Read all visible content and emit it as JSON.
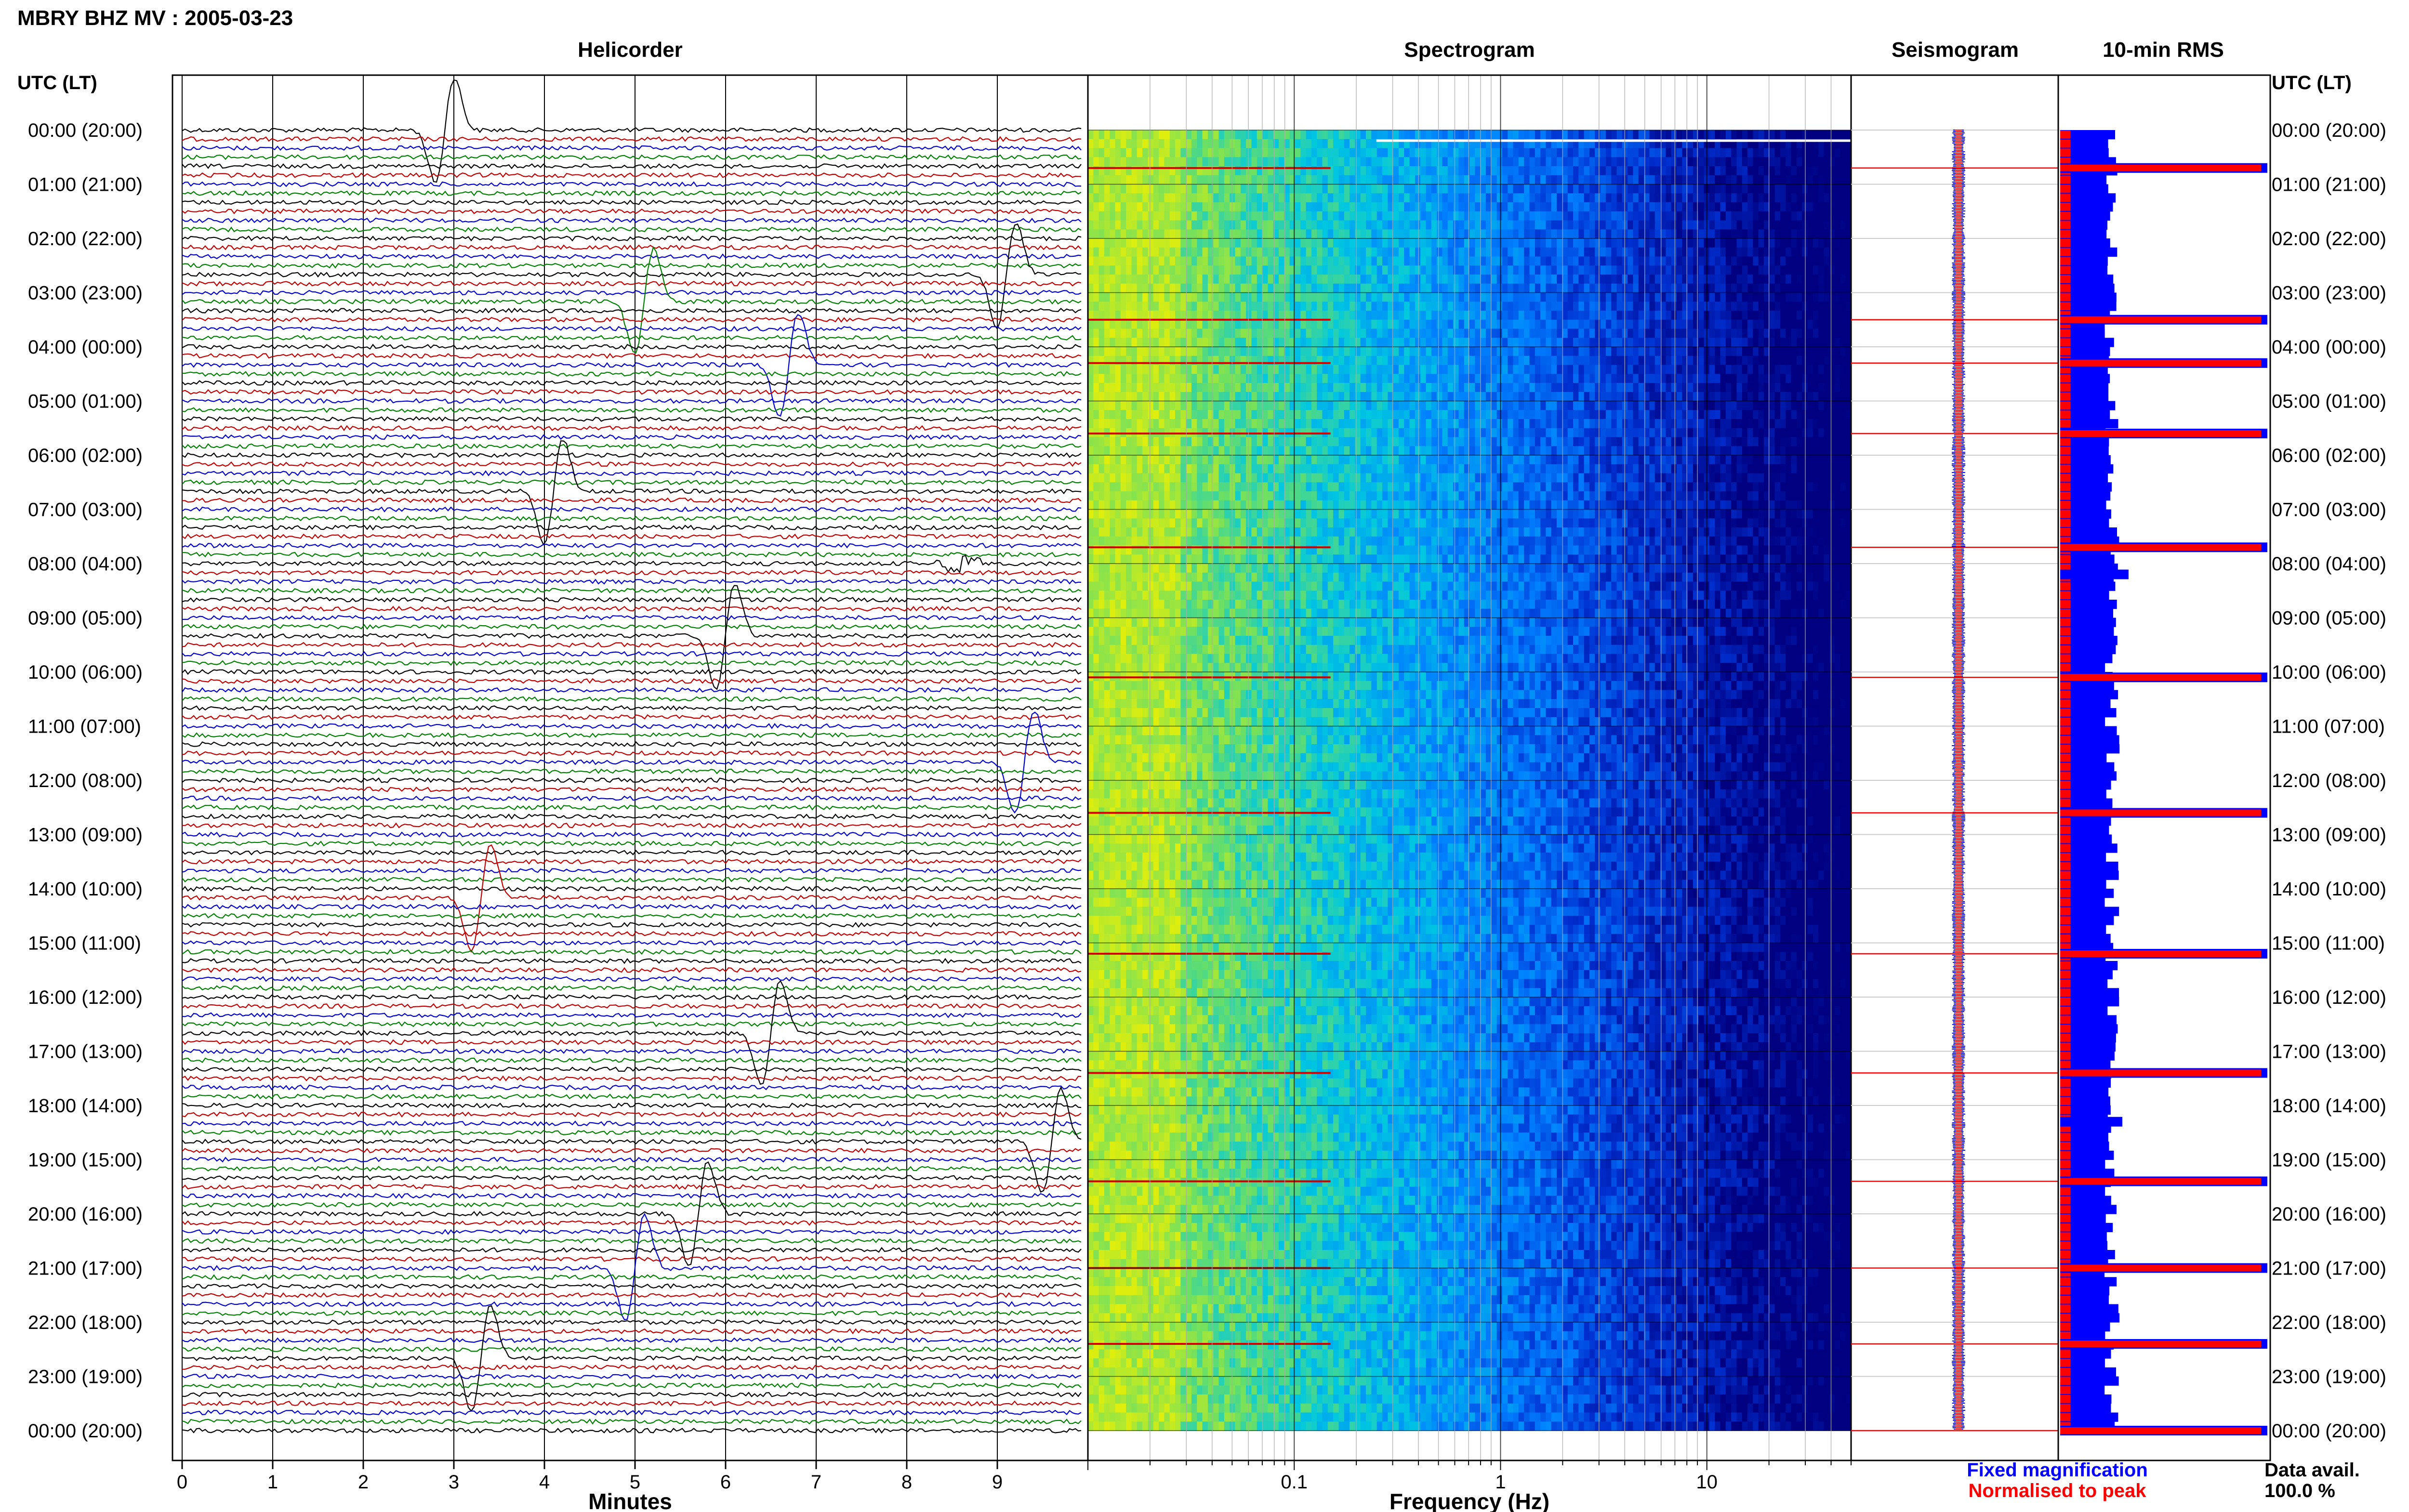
{
  "header": {
    "station": "MBRY BHZ MV : 2005-03-23",
    "left_axis_title": "UTC (LT)",
    "right_axis_title": "UTC (LT)"
  },
  "colors": {
    "trace_cycle": [
      "#000000",
      "#c00000",
      "#0000cc",
      "#008000"
    ],
    "fixed_magnification": "#0000ff",
    "normalised_to_peak": "#ff0000",
    "grid": "#000000"
  },
  "time_labels": [
    "00:00 (20:00)",
    "01:00 (21:00)",
    "02:00 (22:00)",
    "03:00 (23:00)",
    "04:00 (00:00)",
    "05:00 (01:00)",
    "06:00 (02:00)",
    "07:00 (03:00)",
    "08:00 (04:00)",
    "09:00 (05:00)",
    "10:00 (06:00)",
    "11:00 (07:00)",
    "12:00 (08:00)",
    "13:00 (09:00)",
    "14:00 (10:00)",
    "15:00 (11:00)",
    "16:00 (12:00)",
    "17:00 (13:00)",
    "18:00 (14:00)",
    "19:00 (15:00)",
    "20:00 (16:00)",
    "21:00 (17:00)",
    "22:00 (18:00)",
    "23:00 (19:00)",
    "00:00 (20:00)"
  ],
  "panels": {
    "helicorder": {
      "title": "Helicorder",
      "xlabel": "Minutes",
      "ticks": [
        "0",
        "1",
        "2",
        "3",
        "4",
        "5",
        "6",
        "7",
        "8",
        "9"
      ]
    },
    "spectrogram": {
      "title": "Spectrogram",
      "xlabel": "Frequency (Hz)",
      "ticks": [
        "0.1",
        "1",
        "10"
      ]
    },
    "seismogram": {
      "title": "Seismogram"
    },
    "rms": {
      "title": "10-min RMS"
    }
  },
  "legend": {
    "fixed_magnification": "Fixed magnification",
    "normalised_to_peak": "Normalised to peak",
    "data_avail_label": "Data avail.",
    "data_avail_value": "100.0 %"
  },
  "chart_data": [
    {
      "type": "line",
      "name": "helicorder",
      "title": "Helicorder",
      "xlabel": "Minutes",
      "xlim": [
        0,
        10
      ],
      "rows_per_hour": 6,
      "hours": 24,
      "events": [
        {
          "hour": 0.0,
          "minute": 2.9,
          "polarity": 1
        },
        {
          "hour": 2.6,
          "minute": 9.1,
          "polarity": 1
        },
        {
          "hour": 3.1,
          "minute": 5.1,
          "polarity": 1
        },
        {
          "hour": 4.3,
          "minute": 6.7,
          "polarity": 1
        },
        {
          "hour": 6.7,
          "minute": 4.1,
          "polarity": 1
        },
        {
          "hour": 8.0,
          "minute": 8.6,
          "polarity": 0
        },
        {
          "hour": 9.4,
          "minute": 6.0,
          "polarity": 1
        },
        {
          "hour": 11.7,
          "minute": 9.3,
          "polarity": 1
        },
        {
          "hour": 14.1,
          "minute": 3.3,
          "polarity": 1
        },
        {
          "hour": 16.7,
          "minute": 6.5,
          "polarity": 1
        },
        {
          "hour": 18.7,
          "minute": 9.6,
          "polarity": 1
        },
        {
          "hour": 20.0,
          "minute": 5.7,
          "polarity": 1
        },
        {
          "hour": 21.0,
          "minute": 5.0,
          "polarity": 1
        },
        {
          "hour": 22.6,
          "minute": 3.3,
          "polarity": 1
        }
      ]
    },
    {
      "type": "heatmap",
      "name": "spectrogram",
      "title": "Spectrogram",
      "xlabel": "Frequency (Hz)",
      "xscale": "log",
      "xlim": [
        0.01,
        50
      ],
      "colormap": [
        "#f0f000",
        "#70e060",
        "#00c8e0",
        "#0080ff",
        "#0030d0",
        "#000080"
      ],
      "event_hours": [
        0.7,
        3.5,
        4.3,
        5.6,
        7.7,
        10.1,
        12.6,
        15.2,
        17.4,
        19.4,
        21.0,
        22.4
      ]
    },
    {
      "type": "line",
      "name": "seismogram",
      "title": "Seismogram",
      "series": [
        {
          "name": "Fixed magnification",
          "color": "#0000ff"
        },
        {
          "name": "Normalised to peak",
          "color": "#ff0000"
        }
      ],
      "event_hours": [
        0.7,
        3.5,
        4.3,
        5.6,
        7.7,
        10.1,
        12.6,
        15.2,
        17.4,
        19.4,
        21.0,
        22.4,
        24.0
      ]
    },
    {
      "type": "bar",
      "name": "10-min RMS",
      "title": "10-min RMS",
      "bins_per_hour": 6,
      "typical_level": 0.25,
      "peaks": [
        {
          "hour": 0.7,
          "level": 1.0
        },
        {
          "hour": 3.5,
          "level": 1.0
        },
        {
          "hour": 4.3,
          "level": 1.0
        },
        {
          "hour": 5.6,
          "level": 1.0
        },
        {
          "hour": 7.7,
          "level": 1.0
        },
        {
          "hour": 8.2,
          "level": 0.33
        },
        {
          "hour": 10.1,
          "level": 1.0
        },
        {
          "hour": 12.6,
          "level": 1.0
        },
        {
          "hour": 15.2,
          "level": 1.0
        },
        {
          "hour": 17.4,
          "level": 1.0
        },
        {
          "hour": 18.3,
          "level": 0.3
        },
        {
          "hour": 19.4,
          "level": 1.0
        },
        {
          "hour": 21.0,
          "level": 1.0
        },
        {
          "hour": 22.4,
          "level": 1.0
        },
        {
          "hour": 24.0,
          "level": 1.0
        }
      ]
    }
  ]
}
